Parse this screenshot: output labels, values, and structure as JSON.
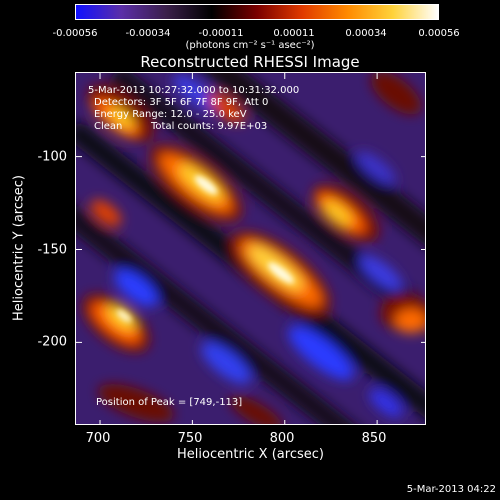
{
  "colorbar": {
    "ticks": [
      "-0.00056",
      "-0.00034",
      "-0.00011",
      "0.00011",
      "0.00034",
      "0.00056"
    ],
    "units_label": "(photons cm⁻² s⁻¹ asec⁻²)",
    "colormap": [
      "#1010ff",
      "#5b2ea8",
      "#3a1f4a",
      "#000000",
      "#7a0000",
      "#e03a00",
      "#ff8a00",
      "#ffd23a",
      "#ffffff"
    ]
  },
  "title": "Reconstructed RHESSI Image",
  "annotations": {
    "time_range": "5-Mar-2013 10:27:32.000 to 10:31:32.000",
    "detectors": "Detectors: 3F 5F 6F 7F 8F 9F, Att 0",
    "energy": "Energy Range: 12.0 - 25.0 keV",
    "clean_label": "Clean",
    "total_counts": "Total counts: 9.97E+03",
    "peak": "Position of Peak = [749,-113]"
  },
  "axes": {
    "xlabel": "Heliocentric X (arcsec)",
    "ylabel": "Heliocentric Y (arcsec)",
    "xlim": [
      687,
      877
    ],
    "ylim": [
      -245,
      -55
    ],
    "xticks": [
      700,
      750,
      800,
      850
    ],
    "yticks": [
      -100,
      -150,
      -200
    ]
  },
  "footer_date": "5-Mar-2013 04:22"
}
